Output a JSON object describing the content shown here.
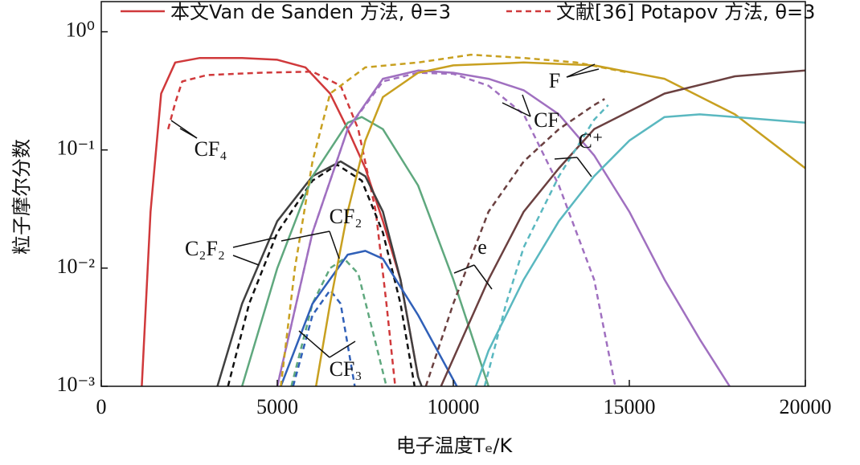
{
  "chart_data": {
    "type": "line",
    "ylabel": "粒子摩尔分数",
    "xlabel": "电子温度Tₑ/K",
    "log_y": true,
    "xlim": [
      0,
      20000
    ],
    "xticks": [
      0,
      5000,
      10000,
      15000,
      20000
    ],
    "ylim": [
      0.001,
      1.8
    ],
    "yticks": [
      {
        "value": 1,
        "label": "10⁰"
      },
      {
        "value": 0.1,
        "label": "10⁻¹"
      },
      {
        "value": 0.01,
        "label": "10⁻²"
      },
      {
        "value": 0.001,
        "label": "10⁻³"
      }
    ],
    "legend": [
      {
        "label": "本文Van de Sanden 方法, θ=3",
        "color": "#d0393b",
        "dash": false
      },
      {
        "label": "文献[36] Potapov 方法, θ=3",
        "color": "#d0393b",
        "dash": true
      }
    ],
    "annotations": [
      "CF₄",
      "C₂F₂",
      "CF₂",
      "CF₃",
      "e",
      "CF",
      "F",
      "C⁺"
    ],
    "series": [
      {
        "color": "#d0393b",
        "dash": false,
        "x": [
          1150,
          1400,
          1700,
          2100,
          2800,
          4000,
          5000,
          5800,
          6500,
          7000,
          7500,
          8000,
          8500,
          9000
        ],
        "values": [
          0.001,
          0.03,
          0.3,
          0.55,
          0.6,
          0.6,
          0.58,
          0.5,
          0.3,
          0.15,
          0.07,
          0.025,
          0.008,
          0.0012
        ]
      },
      {
        "color": "#d0393b",
        "dash": true,
        "x": [
          1900,
          2100,
          2300,
          3000,
          4500,
          6000,
          6800,
          7300,
          7800,
          8100,
          8350
        ],
        "values": [
          0.15,
          0.25,
          0.38,
          0.43,
          0.45,
          0.46,
          0.35,
          0.15,
          0.03,
          0.005,
          0.001
        ]
      },
      {
        "color": "#404040",
        "dash": false,
        "x": [
          3300,
          4000,
          5000,
          6000,
          6800,
          7500,
          8000,
          8500,
          9000,
          9100
        ],
        "values": [
          0.001,
          0.005,
          0.025,
          0.06,
          0.08,
          0.06,
          0.03,
          0.008,
          0.0012,
          0.001
        ]
      },
      {
        "color": "#111111",
        "dash": true,
        "x": [
          3600,
          4200,
          5000,
          6000,
          6700,
          7400,
          8000,
          8500,
          8900
        ],
        "values": [
          0.001,
          0.005,
          0.02,
          0.055,
          0.075,
          0.055,
          0.02,
          0.005,
          0.001
        ]
      },
      {
        "color": "#5fa87e",
        "dash": false,
        "x": [
          4000,
          5000,
          6000,
          7000,
          7400,
          8000,
          9000,
          10000,
          11000
        ],
        "values": [
          0.001,
          0.01,
          0.06,
          0.17,
          0.19,
          0.15,
          0.05,
          0.008,
          0.001
        ]
      },
      {
        "color": "#5fa87e",
        "dash": true,
        "x": [
          5400,
          6000,
          6500,
          6900,
          7300,
          7700,
          8100
        ],
        "values": [
          0.001,
          0.005,
          0.01,
          0.012,
          0.009,
          0.003,
          0.001
        ]
      },
      {
        "color": "#3060b8",
        "dash": false,
        "x": [
          5100,
          6000,
          7000,
          7500,
          8000,
          9000,
          10100
        ],
        "values": [
          0.001,
          0.005,
          0.013,
          0.014,
          0.012,
          0.004,
          0.001
        ]
      },
      {
        "color": "#3060b8",
        "dash": true,
        "x": [
          5450,
          6000,
          6500,
          6800,
          7200
        ],
        "values": [
          0.001,
          0.004,
          0.0065,
          0.005,
          0.001
        ]
      },
      {
        "color": "#a070c0",
        "dash": false,
        "x": [
          5000,
          6000,
          7000,
          8000,
          9000,
          10000,
          11000,
          12000,
          13000,
          14000,
          15000,
          16000,
          17000,
          17850
        ],
        "values": [
          0.001,
          0.02,
          0.15,
          0.4,
          0.47,
          0.45,
          0.4,
          0.32,
          0.2,
          0.09,
          0.03,
          0.008,
          0.0025,
          0.001
        ]
      },
      {
        "color": "#a070c0",
        "dash": true,
        "x": [
          5000,
          6000,
          7000,
          8000,
          9000,
          10000,
          11000,
          12000,
          13000,
          14000,
          14600
        ],
        "values": [
          0.001,
          0.02,
          0.15,
          0.38,
          0.45,
          0.44,
          0.35,
          0.2,
          0.05,
          0.008,
          0.001
        ]
      },
      {
        "color": "#c8a020",
        "dash": false,
        "x": [
          6100,
          6500,
          7000,
          7500,
          8000,
          9000,
          10000,
          12000,
          14000,
          16000,
          18000,
          20000
        ],
        "values": [
          0.001,
          0.005,
          0.03,
          0.12,
          0.28,
          0.45,
          0.52,
          0.55,
          0.52,
          0.4,
          0.2,
          0.07
        ]
      },
      {
        "color": "#c8a020",
        "dash": true,
        "x": [
          5100,
          5500,
          6000,
          6500,
          7500,
          9000,
          10500,
          12000,
          13500,
          15000
        ],
        "values": [
          0.001,
          0.01,
          0.08,
          0.3,
          0.5,
          0.55,
          0.64,
          0.6,
          0.55,
          0.45
        ]
      },
      {
        "color": "#6b4040",
        "dash": false,
        "x": [
          9650,
          11000,
          12000,
          13000,
          14000,
          16000,
          18000,
          20000
        ],
        "values": [
          0.001,
          0.008,
          0.03,
          0.07,
          0.15,
          0.3,
          0.42,
          0.47
        ]
      },
      {
        "color": "#6b4040",
        "dash": true,
        "x": [
          9220,
          10000,
          11000,
          12000,
          13000,
          14000,
          14300
        ],
        "values": [
          0.001,
          0.005,
          0.03,
          0.08,
          0.15,
          0.24,
          0.27
        ]
      },
      {
        "color": "#5ab8c0",
        "dash": false,
        "x": [
          10640,
          11000,
          12000,
          13000,
          14000,
          15000,
          16000,
          17000,
          18000,
          20000
        ],
        "values": [
          0.001,
          0.002,
          0.008,
          0.025,
          0.06,
          0.12,
          0.19,
          0.2,
          0.19,
          0.17
        ]
      },
      {
        "color": "#5ab8c0",
        "dash": true,
        "x": [
          10890,
          11500,
          12000,
          13000,
          14000,
          14400
        ],
        "values": [
          0.001,
          0.005,
          0.015,
          0.06,
          0.18,
          0.24
        ]
      }
    ]
  }
}
